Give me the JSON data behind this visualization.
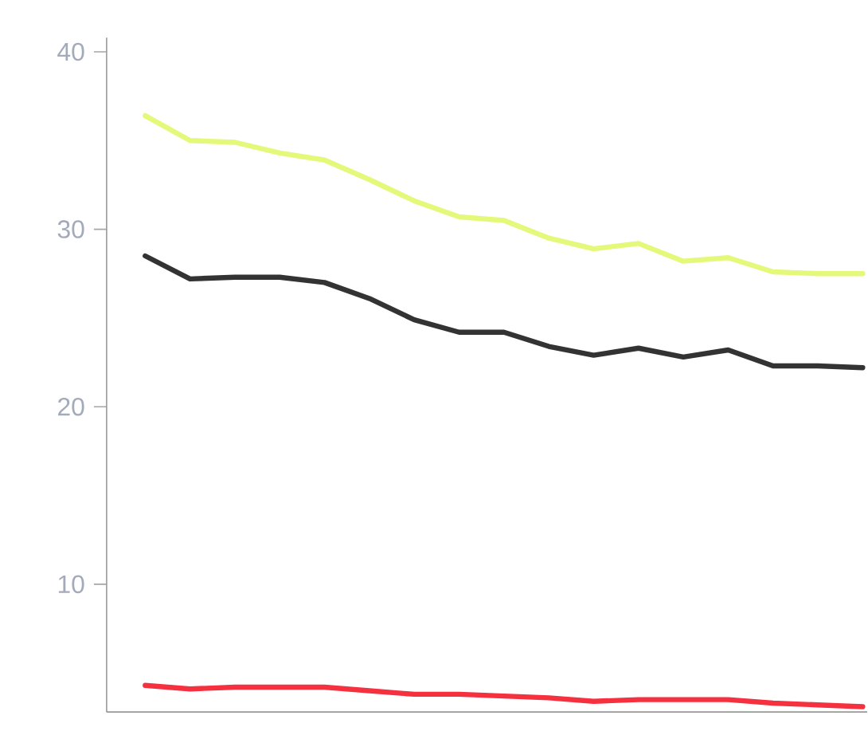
{
  "chart_data": {
    "type": "line",
    "categories": [
      null,
      null,
      null,
      null,
      null,
      null,
      null,
      null,
      null,
      null,
      null,
      null,
      null,
      null,
      null,
      null,
      null
    ],
    "series": [
      {
        "color": "#e4f97a",
        "values": [
          36.4,
          35.0,
          34.9,
          34.3,
          33.9,
          32.8,
          31.6,
          30.7,
          30.5,
          29.5,
          28.9,
          29.2,
          28.2,
          28.4,
          27.6,
          27.5,
          27.5
        ]
      },
      {
        "color": "#333333",
        "values": [
          28.5,
          27.2,
          27.3,
          27.3,
          27.0,
          26.1,
          24.9,
          24.2,
          24.2,
          23.4,
          22.9,
          23.3,
          22.8,
          23.2,
          22.3,
          22.3,
          22.2
        ]
      },
      {
        "color": "#f5303f",
        "values": [
          4.3,
          4.1,
          4.2,
          4.2,
          4.2,
          4.0,
          3.8,
          3.8,
          3.7,
          3.6,
          3.4,
          3.5,
          3.5,
          3.5,
          3.3,
          3.2,
          3.1
        ]
      }
    ],
    "ylim": [
      2.8,
      40.8
    ],
    "yticks": [
      10,
      20,
      30,
      40
    ],
    "tick_labels": "y",
    "grid": false,
    "marker": "none",
    "line_style": "solid"
  }
}
